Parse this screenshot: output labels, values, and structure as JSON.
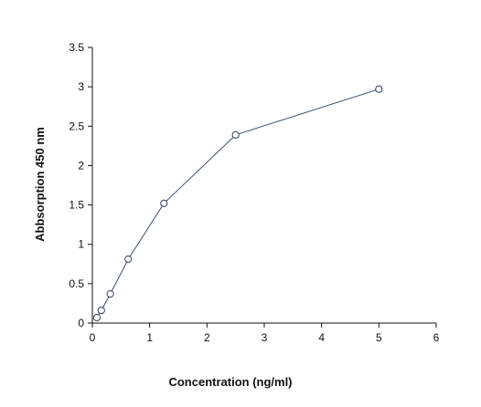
{
  "chart_data": {
    "type": "scatter",
    "title": "",
    "xlabel": "Concentration (ng/ml)",
    "ylabel": "Abbsorption 450 nm",
    "xlim": [
      0,
      6
    ],
    "ylim": [
      0,
      3.5
    ],
    "x_ticks": [
      "0",
      "1",
      "2",
      "3",
      "4",
      "5",
      "6"
    ],
    "y_ticks": [
      "0",
      "0.5",
      "1",
      "1.5",
      "2",
      "2.5",
      "3",
      "3.5"
    ],
    "grid": false,
    "legend": "none",
    "series": [
      {
        "marker": "open-circle",
        "connected": true,
        "x": [
          0.078,
          0.156,
          0.3125,
          0.625,
          1.25,
          2.5,
          5
        ],
        "y": [
          0.07,
          0.16,
          0.37,
          0.81,
          1.52,
          2.39,
          2.97
        ]
      }
    ],
    "colors": {
      "line": "#3b4f6e",
      "marker_stroke": "#2e3f5c",
      "axis": "#111111"
    }
  }
}
